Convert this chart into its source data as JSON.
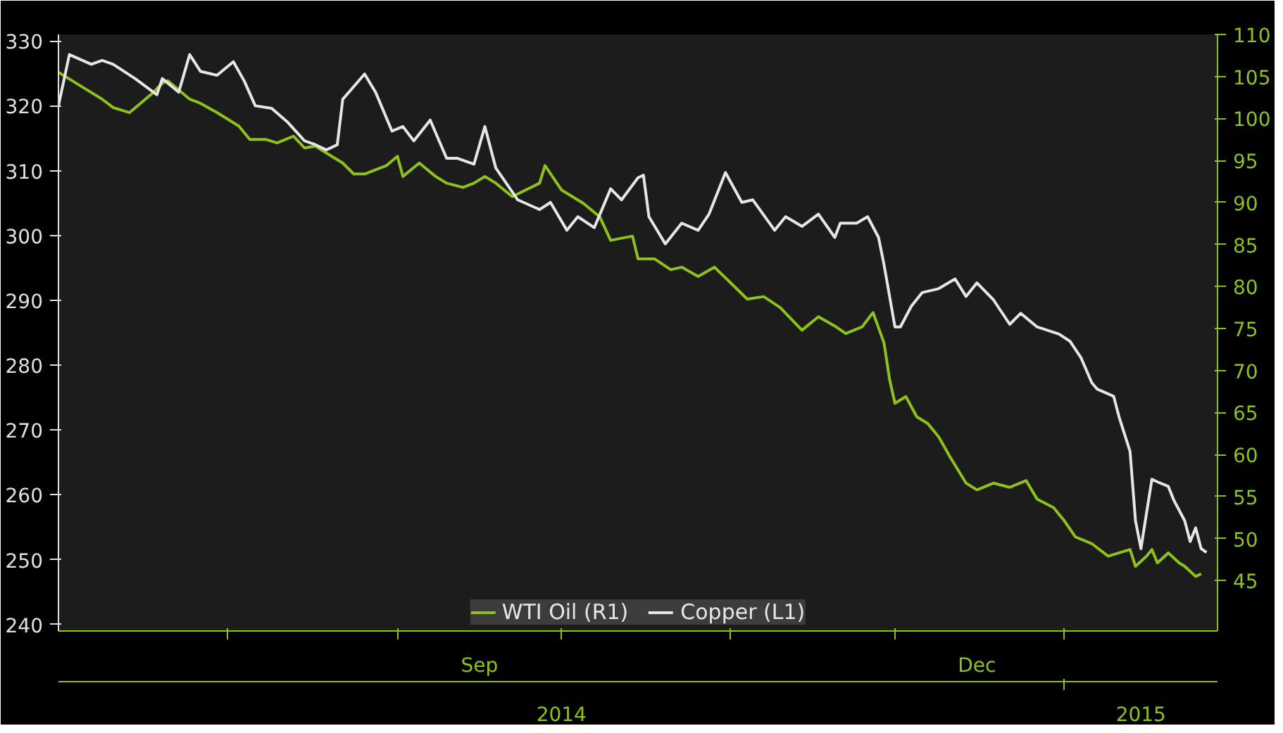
{
  "chart_data": {
    "type": "line",
    "xlim": [
      "2014-07-01",
      "2015-01-29"
    ],
    "xticks": [
      {
        "value": "2014-08-01",
        "label": null
      },
      {
        "value": "2014-09-01",
        "label": null
      },
      {
        "value": "2014-09-16",
        "label": "Sep"
      },
      {
        "value": "2014-10-01",
        "label": null
      },
      {
        "value": "2014-11-01",
        "label": null
      },
      {
        "value": "2014-12-01",
        "label": null
      },
      {
        "value": "2014-12-16",
        "label": "Dec"
      },
      {
        "value": "2015-01-01",
        "label": null
      }
    ],
    "x2lim": [
      "2014-07-01",
      "2015-01-29"
    ],
    "x2ticks": [
      {
        "value": "2014-10-01",
        "label": "2014"
      },
      {
        "value": "2015-01-01",
        "label": null
      },
      {
        "value": "2015-01-15",
        "label": "2015"
      }
    ],
    "ylim": [
      239,
      331
    ],
    "yticks": [
      240,
      250,
      260,
      270,
      280,
      290,
      300,
      310,
      320,
      330
    ],
    "y2lim": [
      39,
      110
    ],
    "y2ticks": [
      45,
      50,
      55,
      60,
      65,
      70,
      75,
      80,
      85,
      90,
      95,
      100,
      105,
      110
    ],
    "legend": "bottom",
    "grid": false,
    "marker": "none",
    "line_style": "solid",
    "series": [
      {
        "name": "WTI Oil (R1)",
        "color": "#8cc21a",
        "axis": "y2",
        "x": [
          "2014-07-01",
          "2014-07-05",
          "2014-07-09",
          "2014-07-11",
          "2014-07-14",
          "2014-07-16",
          "2014-07-18",
          "2014-07-20",
          "2014-07-21",
          "2014-07-23",
          "2014-07-25",
          "2014-07-27",
          "2014-07-30",
          "2014-08-03",
          "2014-08-05",
          "2014-08-08",
          "2014-08-10",
          "2014-08-13",
          "2014-08-15",
          "2014-08-17",
          "2014-08-20",
          "2014-08-22",
          "2014-08-24",
          "2014-08-26",
          "2014-08-30",
          "2014-09-01",
          "2014-09-02",
          "2014-09-05",
          "2014-09-08",
          "2014-09-10",
          "2014-09-13",
          "2014-09-15",
          "2014-09-17",
          "2014-09-19",
          "2014-09-22",
          "2014-09-27",
          "2014-09-28",
          "2014-10-01",
          "2014-10-03",
          "2014-10-05",
          "2014-10-08",
          "2014-10-10",
          "2014-10-14",
          "2014-10-15",
          "2014-10-18",
          "2014-10-21",
          "2014-10-23",
          "2014-10-26",
          "2014-10-29",
          "2014-11-01",
          "2014-11-04",
          "2014-11-07",
          "2014-11-10",
          "2014-11-14",
          "2014-11-17",
          "2014-11-20",
          "2014-11-22",
          "2014-11-25",
          "2014-11-27",
          "2014-11-29",
          "2014-11-30",
          "2014-12-01",
          "2014-12-03",
          "2014-12-05",
          "2014-12-07",
          "2014-12-09",
          "2014-12-11",
          "2014-12-14",
          "2014-12-16",
          "2014-12-19",
          "2014-12-22",
          "2014-12-25",
          "2014-12-27",
          "2014-12-30",
          "2015-01-01",
          "2015-01-03",
          "2015-01-06",
          "2015-01-09",
          "2015-01-11",
          "2015-01-13",
          "2015-01-14",
          "2015-01-16",
          "2015-01-17",
          "2015-01-18",
          "2015-01-20",
          "2015-01-22",
          "2015-01-23",
          "2015-01-25",
          "2015-01-26"
        ],
        "values": [
          105.5,
          103.9,
          102.3,
          101.3,
          100.7,
          101.8,
          102.9,
          104.2,
          104.5,
          103.4,
          102.3,
          101.8,
          100.7,
          99.1,
          97.5,
          97.5,
          97.1,
          97.9,
          96.5,
          96.7,
          95.5,
          94.7,
          93.4,
          93.4,
          94.4,
          95.5,
          93.1,
          94.7,
          93.1,
          92.3,
          91.8,
          92.3,
          93.1,
          92.3,
          90.7,
          92.3,
          94.4,
          91.5,
          90.7,
          89.9,
          88.3,
          85.5,
          86.0,
          83.3,
          83.3,
          82.0,
          82.3,
          81.2,
          82.3,
          80.4,
          78.5,
          78.8,
          77.5,
          74.8,
          76.4,
          75.3,
          74.4,
          75.2,
          76.9,
          73.3,
          69.0,
          66.1,
          66.9,
          64.5,
          63.7,
          62.1,
          59.8,
          56.6,
          55.8,
          56.6,
          56.1,
          56.9,
          54.7,
          53.7,
          52.1,
          50.2,
          49.4,
          47.9,
          48.3,
          48.7,
          46.7,
          47.9,
          48.7,
          47.1,
          48.3,
          47.1,
          46.7,
          45.5,
          45.8
        ]
      },
      {
        "name": "Copper (L1)",
        "color": "#e6e6e6",
        "x": [
          "2014-07-01",
          "2014-07-03",
          "2014-07-07",
          "2014-07-09",
          "2014-07-11",
          "2014-07-15",
          "2014-07-19",
          "2014-07-20",
          "2014-07-23",
          "2014-07-25",
          "2014-07-27",
          "2014-07-30",
          "2014-08-02",
          "2014-08-04",
          "2014-08-06",
          "2014-08-09",
          "2014-08-12",
          "2014-08-15",
          "2014-08-17",
          "2014-08-19",
          "2014-08-21",
          "2014-08-22",
          "2014-08-26",
          "2014-08-28",
          "2014-08-31",
          "2014-09-02",
          "2014-09-04",
          "2014-09-07",
          "2014-09-10",
          "2014-09-12",
          "2014-09-15",
          "2014-09-17",
          "2014-09-19",
          "2014-09-23",
          "2014-09-27",
          "2014-09-29",
          "2014-10-02",
          "2014-10-04",
          "2014-10-07",
          "2014-10-10",
          "2014-10-12",
          "2014-10-15",
          "2014-10-16",
          "2014-10-17",
          "2014-10-20",
          "2014-10-23",
          "2014-10-26",
          "2014-10-28",
          "2014-10-31",
          "2014-11-03",
          "2014-11-05",
          "2014-11-09",
          "2014-11-11",
          "2014-11-14",
          "2014-11-17",
          "2014-11-20",
          "2014-11-21",
          "2014-11-24",
          "2014-11-26",
          "2014-11-28",
          "2014-11-29",
          "2014-12-01",
          "2014-12-02",
          "2014-12-04",
          "2014-12-06",
          "2014-12-09",
          "2014-12-12",
          "2014-12-14",
          "2014-12-16",
          "2014-12-19",
          "2014-12-22",
          "2014-12-24",
          "2014-12-27",
          "2014-12-31",
          "2015-01-02",
          "2015-01-04",
          "2015-01-06",
          "2015-01-07",
          "2015-01-10",
          "2015-01-11",
          "2015-01-13",
          "2015-01-14",
          "2015-01-15",
          "2015-01-16",
          "2015-01-17",
          "2015-01-18",
          "2015-01-20",
          "2015-01-21",
          "2015-01-23",
          "2015-01-24",
          "2015-01-25",
          "2015-01-26",
          "2015-01-27"
        ],
        "values": [
          320.0,
          327.9,
          326.4,
          327.0,
          326.4,
          324.2,
          321.7,
          324.2,
          322.1,
          327.9,
          325.3,
          324.7,
          326.8,
          323.8,
          320.0,
          319.6,
          317.4,
          314.6,
          314.0,
          313.2,
          314.0,
          321.0,
          324.9,
          322.1,
          316.1,
          316.8,
          314.6,
          317.8,
          311.9,
          311.9,
          311.0,
          316.8,
          310.4,
          305.5,
          304.0,
          305.1,
          300.8,
          302.9,
          301.2,
          307.2,
          305.5,
          308.9,
          309.3,
          302.9,
          298.7,
          301.9,
          300.8,
          303.3,
          309.7,
          305.1,
          305.5,
          300.8,
          302.9,
          301.4,
          303.3,
          299.7,
          301.9,
          301.9,
          302.9,
          299.7,
          295.5,
          285.9,
          285.9,
          289.1,
          291.2,
          291.8,
          293.3,
          290.6,
          292.7,
          290.1,
          286.3,
          288.0,
          285.9,
          284.8,
          283.7,
          281.2,
          277.3,
          276.3,
          275.2,
          272.0,
          266.7,
          256.0,
          251.7,
          257.1,
          262.4,
          262.0,
          261.3,
          259.2,
          256.0,
          252.8,
          254.9,
          251.7,
          251.1
        ]
      }
    ]
  }
}
